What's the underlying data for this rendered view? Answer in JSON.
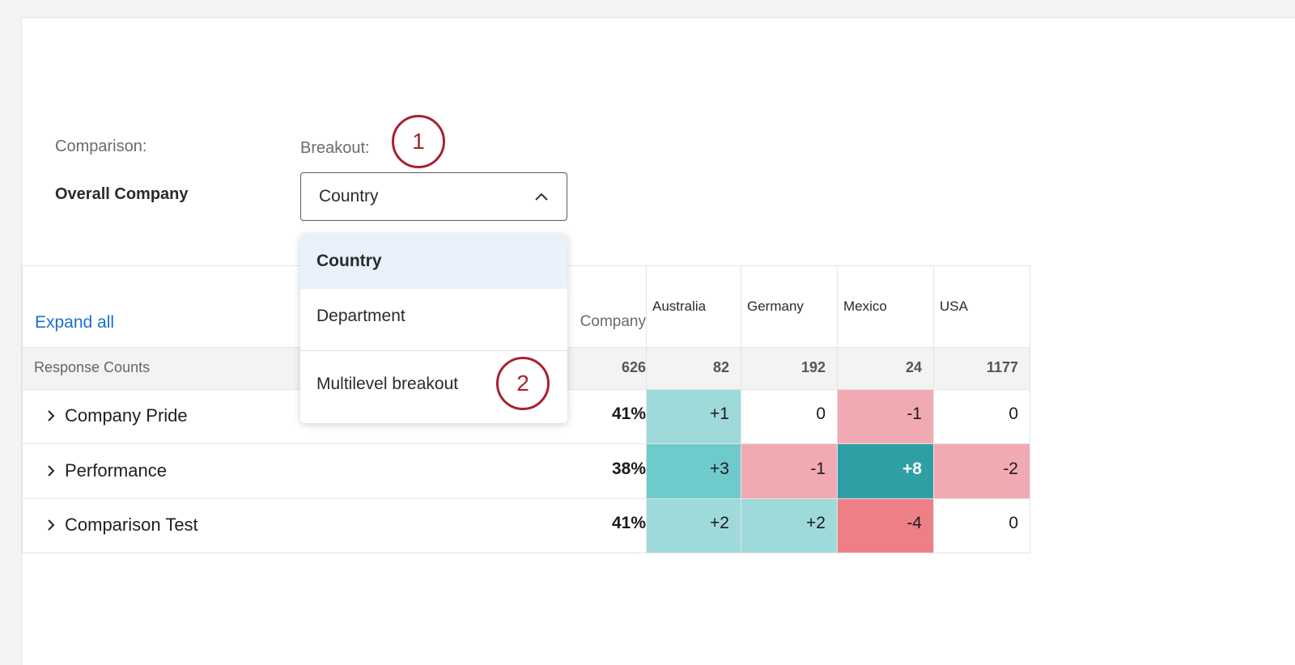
{
  "filters": {
    "comparison_label": "Comparison:",
    "comparison_value": "Overall Company",
    "breakout_label": "Breakout:",
    "breakout_selected": "Country",
    "callout_1": "1",
    "callout_2": "2"
  },
  "dropdown": {
    "items": [
      "Country",
      "Department",
      "Multilevel breakout"
    ]
  },
  "table": {
    "expand_all": "Expand all",
    "company_header": "Company",
    "columns": [
      "Australia",
      "Germany",
      "Mexico",
      "USA"
    ],
    "counts_label": "Response Counts",
    "counts": [
      "626",
      "82",
      "192",
      "24",
      "1177"
    ],
    "rows": [
      {
        "label": "Company Pride",
        "overall": "41%",
        "values": [
          "+1",
          "0",
          "-1",
          "0"
        ]
      },
      {
        "label": "Performance",
        "overall": "38%",
        "values": [
          "+3",
          "-1",
          "+8",
          "-2"
        ]
      },
      {
        "label": "Comparison Test",
        "overall": "41%",
        "values": [
          "+2",
          "+2",
          "-4",
          "0"
        ]
      }
    ]
  },
  "colors": {
    "teal_light": "#9fdadb",
    "teal_mid": "#6fcacb",
    "teal_dark": "#2f9fa6",
    "red_light": "#f2aab2",
    "red_mid": "#ef7f87",
    "callout": "#a8222e",
    "link": "#1a6fd1"
  },
  "icons": {
    "dropdown_toggle": "chevron-up-icon",
    "row_expand": "chevron-right-icon"
  }
}
